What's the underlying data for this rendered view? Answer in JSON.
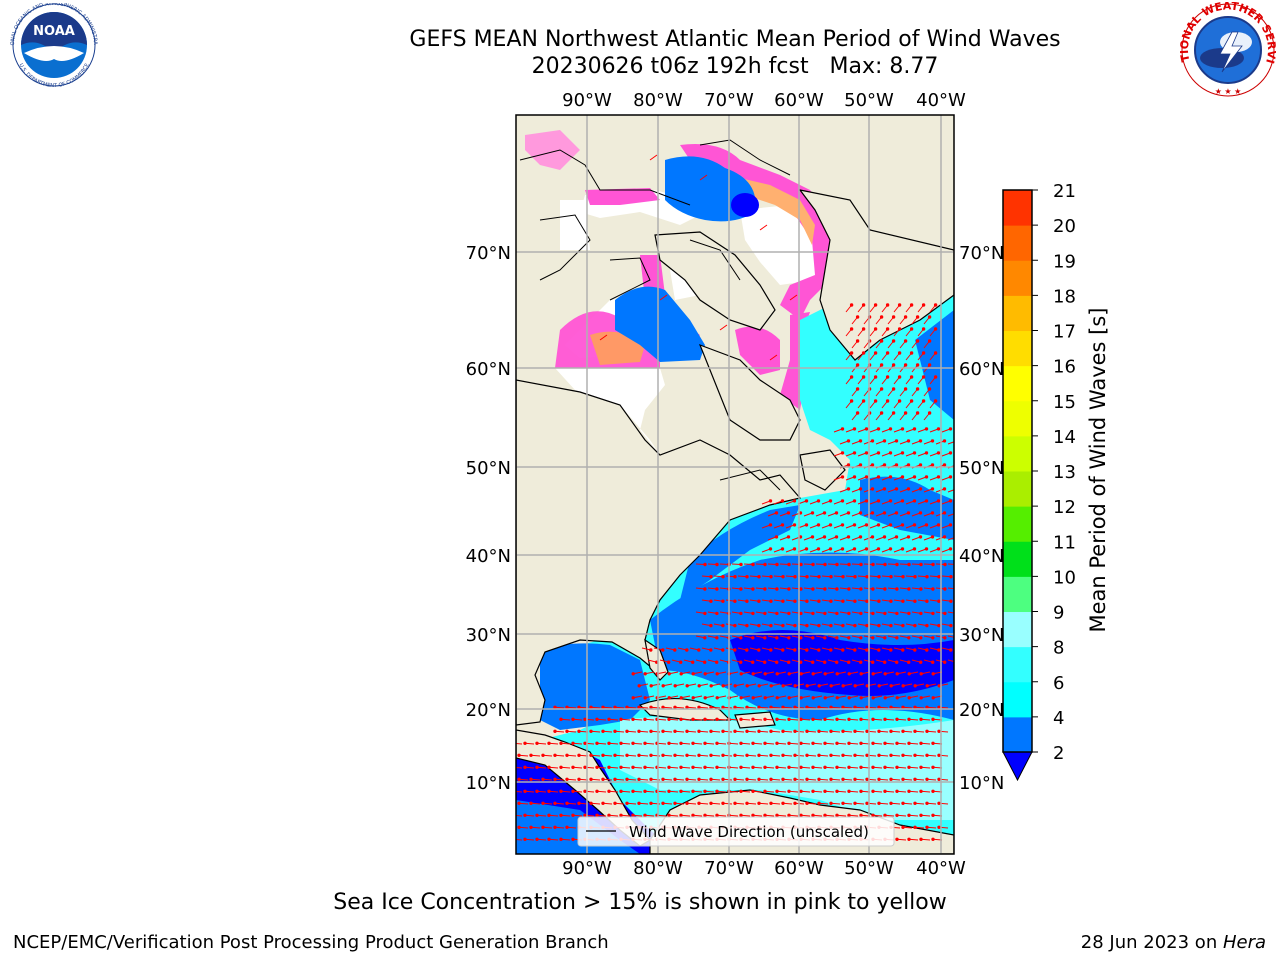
{
  "title": {
    "line1": "GEFS MEAN Northwest Atlantic Mean Period of Wind Waves",
    "line2": "20230626 t06z 192h fcst   Max: 8.77"
  },
  "map": {
    "lon_labels": [
      "90°W",
      "80°W",
      "70°W",
      "60°W",
      "50°W",
      "40°W"
    ],
    "lat_labels": [
      "70°N",
      "60°N",
      "50°N",
      "40°N",
      "30°N",
      "20°N",
      "10°N"
    ],
    "legend_label": "Wind Wave Direction (unscaled)",
    "colors": {
      "land": "#efecda",
      "ice_land": "#ffffff",
      "arrow": "#ff0000",
      "grid": "#b0b0b0"
    }
  },
  "colorbar": {
    "label": "Mean Period of Wind Waves [s]",
    "ticks": [
      "2",
      "4",
      "6",
      "8",
      "9",
      "10",
      "11",
      "12",
      "13",
      "14",
      "15",
      "16",
      "17",
      "18",
      "19",
      "20",
      "21"
    ],
    "colors": [
      "#0077ff",
      "#00ffff",
      "#33ffff",
      "#99ffff",
      "#4dff80",
      "#00e01a",
      "#55ee00",
      "#aaee00",
      "#ccff00",
      "#eeff00",
      "#ffff00",
      "#ffdd00",
      "#ffbb00",
      "#ff8800",
      "#ff6600",
      "#ff3300"
    ],
    "under_color": "#0000ff",
    "top_color": "#ff0000"
  },
  "notes": {
    "sea_ice": "Sea Ice Concentration > 15% is shown in pink to yellow"
  },
  "footer": {
    "left": "NCEP/EMC/Verification Post Processing Product Generation Branch",
    "right_prefix": "28 Jun 2023 on ",
    "right_host": "Hera"
  },
  "logos": {
    "noaa_text": "NOAA",
    "noaa_ring_top": "NATIONAL OCEANIC AND ATMOSPHERIC ADMINISTRATION",
    "noaa_ring_bottom": "U.S. DEPARTMENT OF COMMERCE",
    "nws_ring": "NATIONAL WEATHER SERVICE"
  }
}
